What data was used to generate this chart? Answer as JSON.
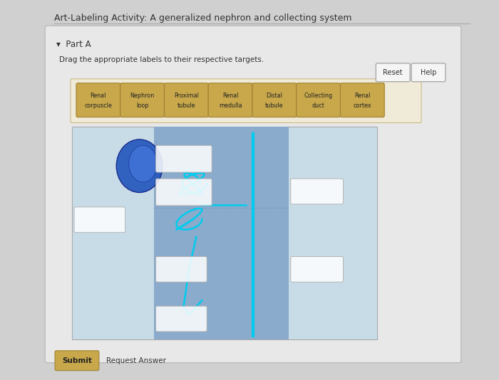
{
  "title": "Art-Labeling Activity: A generalized nephron and collecting system",
  "part_label": "Part A",
  "instruction": "Drag the appropriate labels to their respective targets.",
  "bg_color": "#d0d0d0",
  "panel_bg": "#e8e8e8",
  "label_buttons": [
    "Renal\ncorpuscle",
    "Nephron\nloop",
    "Proximal\ntubule",
    "Renal\nmedulla",
    "Distal\ntubule",
    "Collecting\nduct",
    "Renal\ncortex"
  ],
  "button_bg": "#c8a84b",
  "button_border": "#a08030",
  "diagram_bg": "#c8dce8",
  "medulla_bg": "#8aabcc",
  "submit_label": "Submit",
  "request_label": "Request Answer"
}
